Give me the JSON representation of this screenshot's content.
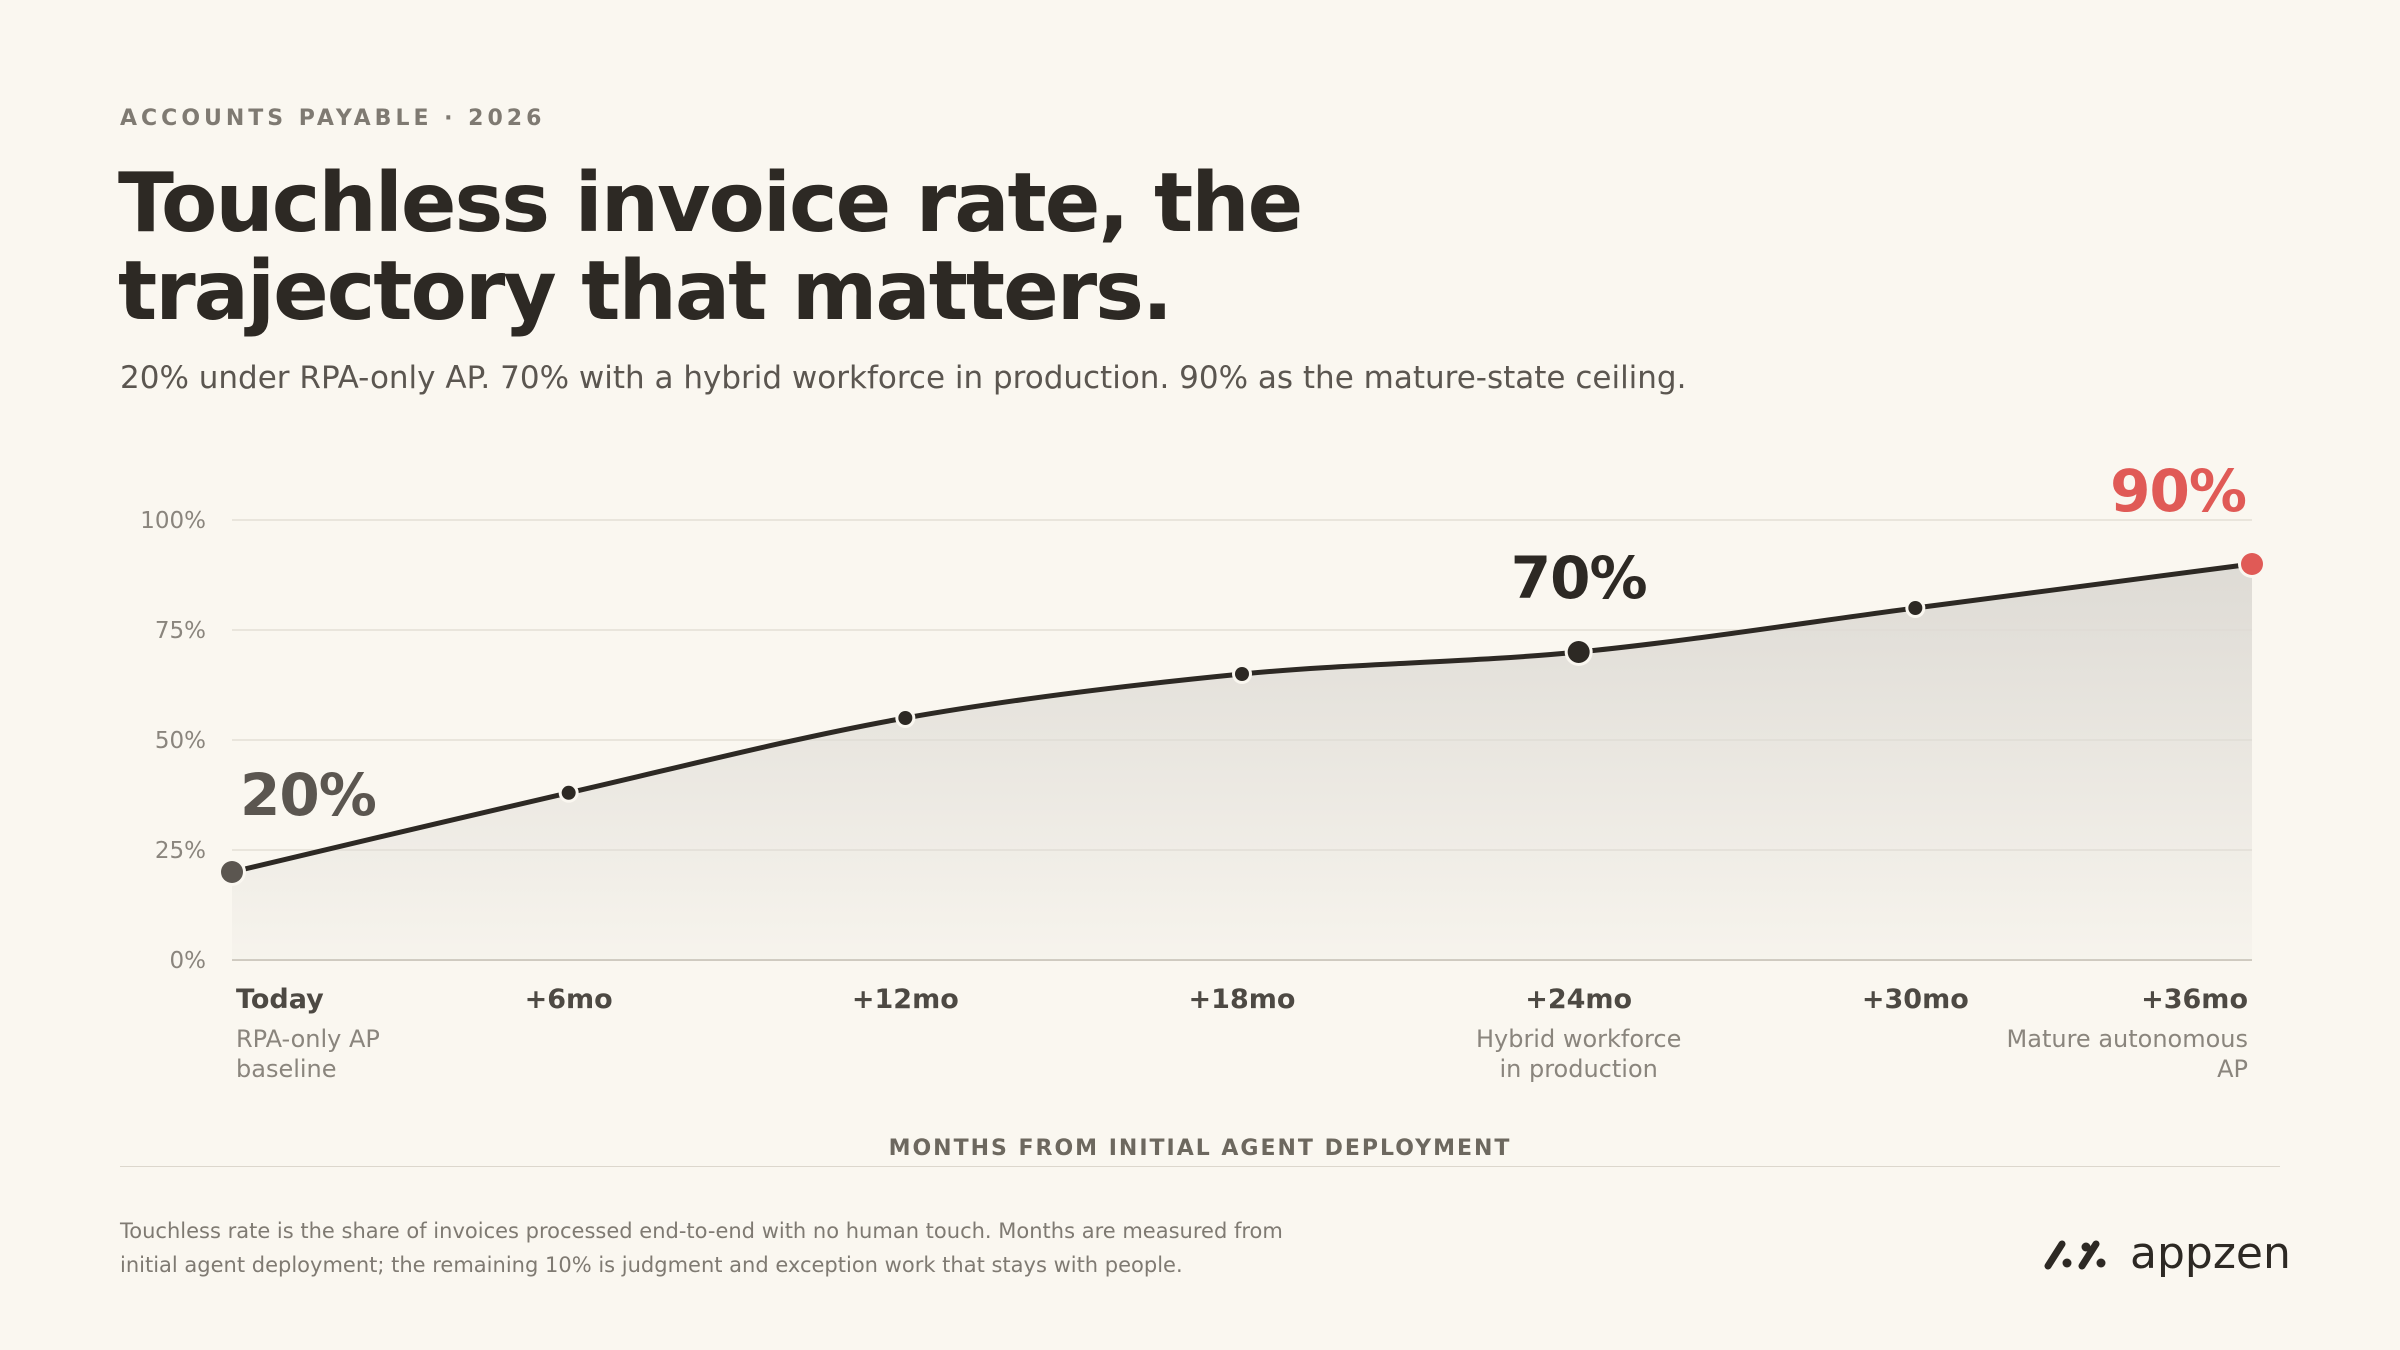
{
  "header": {
    "eyebrow": "ACCOUNTS PAYABLE · 2026",
    "title": "Touchless invoice rate, the trajectory that matters.",
    "subtitle": "20% under RPA-only AP. 70% with a hybrid workforce in production. 90% as the mature-state ceiling."
  },
  "chart_data": {
    "type": "line",
    "title": "",
    "xlabel": "MONTHS FROM INITIAL AGENT DEPLOYMENT",
    "ylabel": "",
    "ylim": [
      0,
      100
    ],
    "y_ticks": [
      "0%",
      "25%",
      "50%",
      "75%",
      "100%"
    ],
    "categories": [
      "Today",
      "+6mo",
      "+12mo",
      "+18mo",
      "+24mo",
      "+30mo",
      "+36mo"
    ],
    "category_notes": [
      "RPA-only AP baseline",
      "",
      "",
      "",
      "Hybrid workforce in production",
      "",
      "Mature autonomous AP"
    ],
    "series": [
      {
        "values": [
          20,
          38,
          55,
          65,
          70,
          80,
          90
        ]
      }
    ],
    "annotations": [
      {
        "label": "20%",
        "index": 0,
        "color": "#5b5650"
      },
      {
        "label": "70%",
        "index": 4,
        "color": "#2d2924"
      },
      {
        "label": "90%",
        "index": 6,
        "color": "#e05a56"
      }
    ],
    "grid": true,
    "colors": {
      "line": "#2d2924",
      "highlight": "#e05a56",
      "area": "#dedbd5"
    }
  },
  "footer": {
    "note": "Touchless rate is the share of invoices processed end-to-end with no human touch. Months are measured from initial agent deployment; the remaining 10% is judgment and exception work that stays with people.",
    "logo": "appzen"
  }
}
